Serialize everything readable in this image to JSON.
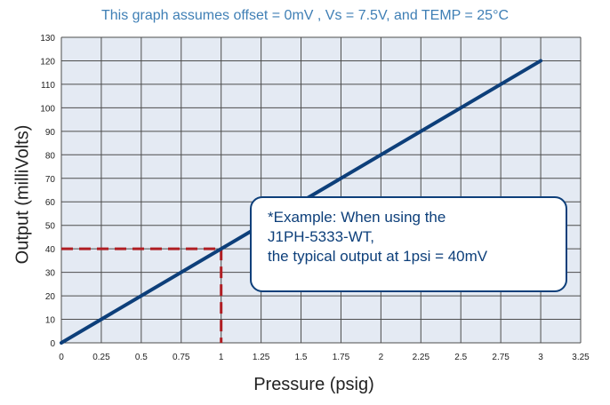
{
  "chart_data": {
    "type": "line",
    "subtitle": "This graph assumes offset = 0mV , Vs = 7.5V,  and TEMP = 25°C",
    "xlabel": "Pressure (psig)",
    "ylabel": "Output (milliVolts)",
    "xlim": [
      0,
      3.25
    ],
    "ylim": [
      0,
      130
    ],
    "x_ticks": [
      "0",
      "0.25",
      "0.5",
      "0.75",
      "1",
      "1.25",
      "1.5",
      "1.75",
      "2",
      "2.25",
      "2.5",
      "2.75",
      "3",
      "3.25"
    ],
    "y_ticks": [
      "0",
      "10",
      "20",
      "30",
      "40",
      "50",
      "60",
      "70",
      "80",
      "90",
      "100",
      "110",
      "120",
      "130"
    ],
    "grid": true,
    "series": [
      {
        "x": [
          0,
          3
        ],
        "y": [
          0,
          120
        ],
        "color": "#0d3f7a"
      }
    ],
    "reference_lines": {
      "x": 1,
      "y": 40,
      "color": "#b01e23",
      "style": "dashed"
    },
    "annotation": {
      "lines": [
        "*Example:  When using the",
        "J1PH-5333-WT,",
        "the typical output at 1psi = 40mV"
      ]
    }
  },
  "colors": {
    "plot_bg": "#e4eaf3",
    "grid": "#4d4d4d",
    "series": "#0d3f7a",
    "reference": "#b01e23",
    "subtitle": "#3f7fb5"
  }
}
